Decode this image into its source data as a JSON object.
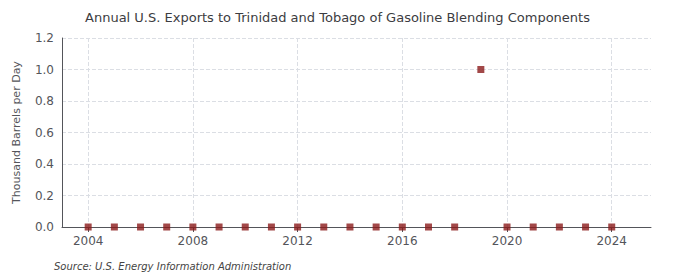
{
  "chart_data": {
    "type": "scatter",
    "title": "Annual U.S. Exports to Trinidad and Tobago of Gasoline Blending Components",
    "ylabel": "Thousand Barrels per Day",
    "annotations": [
      "Source: U.S. Energy Information Administration"
    ],
    "x": [
      2004,
      2005,
      2006,
      2007,
      2008,
      2009,
      2010,
      2011,
      2012,
      2013,
      2014,
      2015,
      2016,
      2017,
      2018,
      2019,
      2020,
      2021,
      2022,
      2023,
      2024
    ],
    "values": [
      0.0,
      0.0,
      0.0,
      0.0,
      0.0,
      0.0,
      0.0,
      0.0,
      0.0,
      0.0,
      0.0,
      0.0,
      0.0,
      0.0,
      0.0,
      1.0,
      0.0,
      0.0,
      0.0,
      0.0,
      0.0
    ],
    "color": "#8b1a1a",
    "marker": "square",
    "xlim": [
      2003.0,
      2025.5
    ],
    "xticks": [
      2004,
      2008,
      2012,
      2016,
      2020,
      2024
    ],
    "ylim": [
      0,
      1.2
    ],
    "yticks": [
      {
        "value": 0.0,
        "label": "0.0"
      },
      0.2,
      0.4,
      0.6,
      0.8,
      {
        "value": 1.0,
        "label": "1.0"
      },
      1.2
    ],
    "grid": true
  }
}
